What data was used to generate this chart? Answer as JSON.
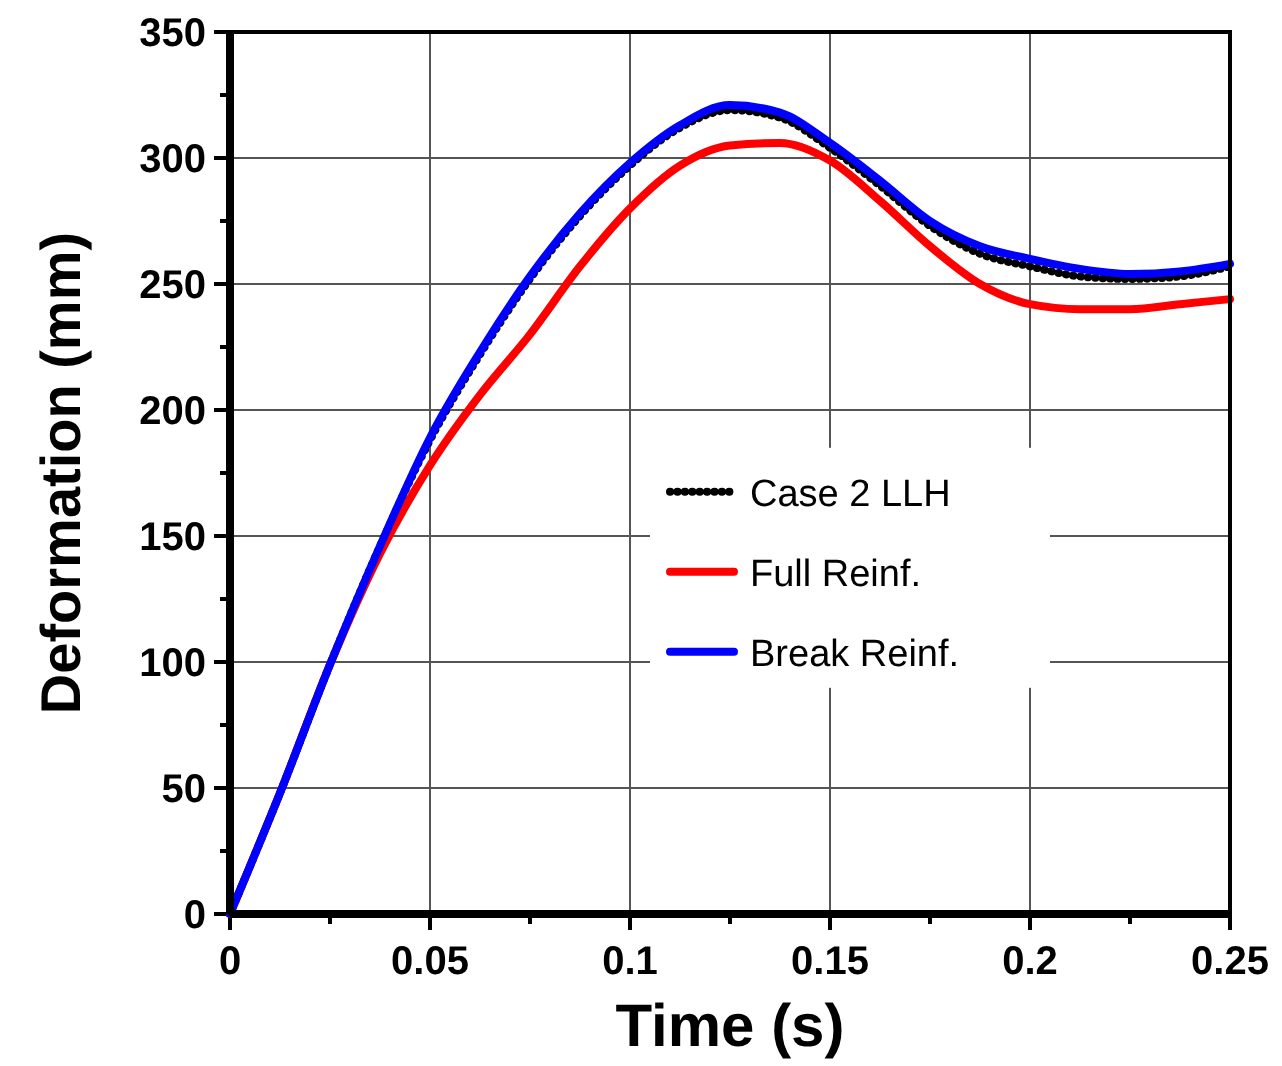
{
  "chart_data": {
    "type": "line",
    "xlabel": "Time (s)",
    "ylabel": "Deformation (mm)",
    "x": [
      0,
      0.0125,
      0.025,
      0.0375,
      0.05,
      0.0625,
      0.075,
      0.0875,
      0.1,
      0.1125,
      0.125,
      0.1375,
      0.15,
      0.1625,
      0.175,
      0.1875,
      0.2,
      0.2125,
      0.225,
      0.2375,
      0.25
    ],
    "series": [
      {
        "name": "Case 2 LLH",
        "color": "#000000",
        "line_style": "dotted",
        "values": [
          0,
          48,
          99,
          146,
          188,
          222,
          252,
          277,
          297,
          312,
          319,
          316,
          304,
          289,
          273,
          262,
          257,
          253,
          252,
          253,
          257
        ]
      },
      {
        "name": "Full Reinf.",
        "color": "#ff0000",
        "line_style": "solid",
        "values": [
          0,
          48,
          99,
          143,
          178,
          206,
          230,
          257,
          280,
          297,
          305,
          306,
          299,
          283,
          265,
          250,
          242,
          240,
          240,
          242,
          244
        ]
      },
      {
        "name": "Break Reinf.",
        "color": "#0000ff",
        "line_style": "solid",
        "values": [
          0,
          48,
          99,
          146,
          189,
          223,
          253,
          278,
          298,
          313,
          321,
          318,
          306,
          291,
          275,
          265,
          260,
          256,
          254,
          255,
          258
        ]
      }
    ],
    "xlim": [
      0,
      0.25
    ],
    "xticks": [
      0,
      {
        "value": 0.025,
        "label": null
      },
      0.05,
      {
        "value": 0.075,
        "label": null
      },
      0.1,
      {
        "value": 0.125,
        "label": null
      },
      0.15,
      {
        "value": 0.175,
        "label": null
      },
      0.2,
      {
        "value": 0.225,
        "label": null
      },
      0.25
    ],
    "ylim": [
      0,
      350
    ],
    "yticks": [
      0,
      {
        "value": 25,
        "label": null
      },
      50,
      {
        "value": 75,
        "label": null
      },
      100,
      {
        "value": 125,
        "label": null
      },
      150,
      {
        "value": 175,
        "label": null
      },
      200,
      {
        "value": 225,
        "label": null
      },
      250,
      {
        "value": 275,
        "label": null
      },
      300,
      {
        "value": 325,
        "label": null
      },
      350
    ],
    "grid": true,
    "legend": "right"
  }
}
